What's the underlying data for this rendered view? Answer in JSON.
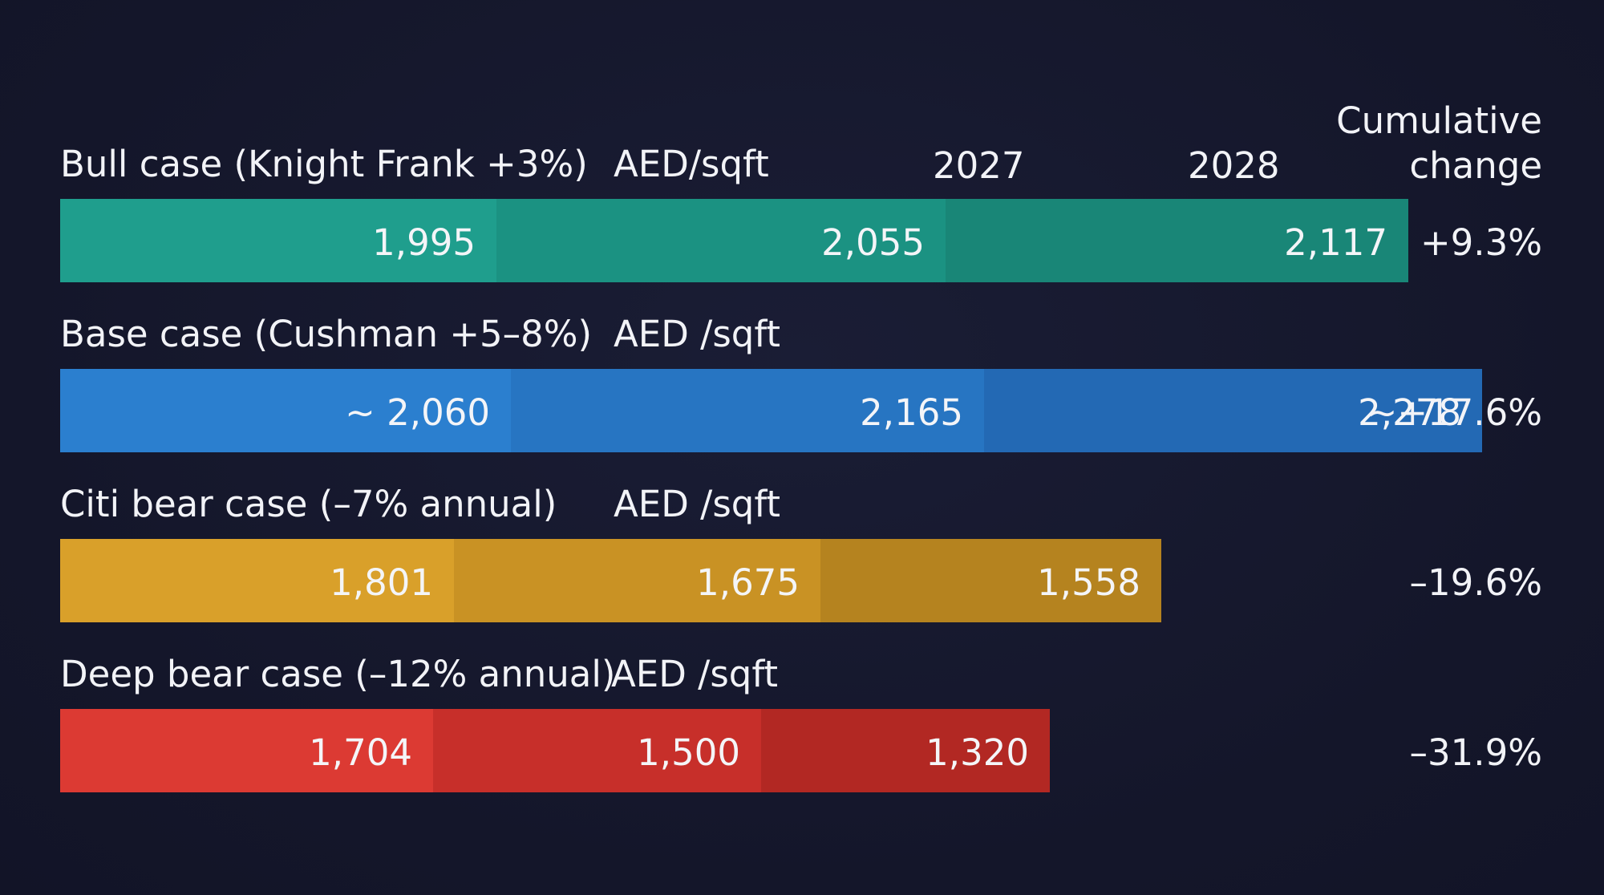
{
  "chart_data": {
    "type": "table",
    "columns": {
      "unit_header": "",
      "year_2027": "2027",
      "year_2028": "2028",
      "cumulative_line1": "Cumulative",
      "cumulative_line2": "change"
    },
    "years": [
      "",
      "2027",
      "2028"
    ],
    "rows": [
      {
        "label": "Bull case (Knight Frank +3%)",
        "unit": "AED/sqft",
        "values": [
          1995,
          2055,
          2117
        ],
        "value_labels": [
          "1,995",
          "2,055",
          "2,117"
        ],
        "cumulative": "+9.3%",
        "colors": [
          "#1f9e8d",
          "#1b9282",
          "#198677"
        ]
      },
      {
        "label": "Base case (Cushman +5–8%)",
        "unit": "AED /sqft",
        "values": [
          2060,
          2165,
          2278
        ],
        "value_labels": [
          "~ 2,060",
          "2,165",
          "2,278"
        ],
        "cumulative": "~+17.6%",
        "colors": [
          "#2b7fcf",
          "#2775c2",
          "#2369b4"
        ]
      },
      {
        "label": "Citi bear case (–7% annual)",
        "unit": "AED /sqft",
        "values": [
          1801,
          1675,
          1558
        ],
        "value_labels": [
          "1,801",
          "1,675",
          "1,558"
        ],
        "cumulative": "–19.6%",
        "colors": [
          "#d9a02a",
          "#c99224",
          "#b5831f"
        ]
      },
      {
        "label": "Deep bear case (–12% annual)",
        "unit": "AED /sqft",
        "values": [
          1704,
          1500,
          1320
        ],
        "value_labels": [
          "1,704",
          "1,500",
          "1,320"
        ],
        "cumulative": "–31.9%",
        "colors": [
          "#dc3a33",
          "#c72f2a",
          "#b22823"
        ]
      }
    ]
  }
}
